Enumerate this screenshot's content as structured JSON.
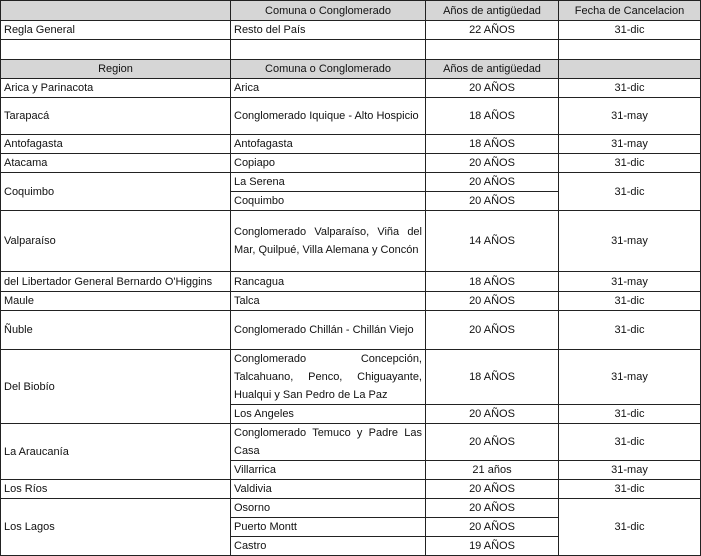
{
  "top": {
    "headers": [
      "Comuna o Conglomerado",
      "Años de antigüedad",
      "Fecha de Cancelacion"
    ],
    "row": [
      "Regla General",
      "Resto del País",
      "22 AÑOS",
      "31-dic"
    ]
  },
  "regions": {
    "headers": [
      "Region",
      "Comuna o Conglomerado",
      "Años de antigüedad"
    ],
    "rows": [
      {
        "region": "Arica y Parinacota",
        "fecha": "31-dic",
        "comunas": [
          {
            "comuna": "Arica",
            "anos": "20 AÑOS"
          }
        ]
      },
      {
        "region": "Tarapacá",
        "fecha": "31-may",
        "comunas": [
          {
            "comuna": "Conglomerado Iquique - Alto Hospicio",
            "anos": "18 AÑOS"
          }
        ]
      },
      {
        "region": "Antofagasta",
        "fecha": "31-may",
        "comunas": [
          {
            "comuna": "Antofagasta",
            "anos": "18 AÑOS"
          }
        ]
      },
      {
        "region": "Atacama",
        "fecha": "31-dic",
        "comunas": [
          {
            "comuna": "Copiapo",
            "anos": "20 AÑOS"
          }
        ]
      },
      {
        "region": "Coquimbo",
        "fecha": "31-dic",
        "comunas": [
          {
            "comuna": "La Serena",
            "anos": "20 AÑOS"
          },
          {
            "comuna": "Coquimbo",
            "anos": "20 AÑOS"
          }
        ]
      },
      {
        "region": "Valparaíso",
        "fecha": "31-may",
        "comunas": [
          {
            "comuna": "Conglomerado Valparaíso, Viña del Mar, Quilpué, Villa Alemana y Concón",
            "anos": "14 AÑOS"
          }
        ]
      },
      {
        "region": "del Libertador General Bernardo O'Higgins",
        "fecha": "31-may",
        "comunas": [
          {
            "comuna": "Rancagua",
            "anos": "18 AÑOS"
          }
        ]
      },
      {
        "region": "Maule",
        "fecha": "31-dic",
        "comunas": [
          {
            "comuna": "Talca",
            "anos": "20 AÑOS"
          }
        ]
      },
      {
        "region": "Ñuble",
        "fecha": "31-dic",
        "comunas": [
          {
            "comuna": "Conglomerado Chillán - Chillán Viejo",
            "anos": "20 AÑOS"
          }
        ]
      },
      {
        "region": "Del Biobío",
        "fecha": "31-may",
        "comunas": [
          {
            "comuna": "Conglomerado Concepción, Talcahuano, Penco, Chiguayante, Hualqui y San Pedro de La Paz",
            "anos": "18 AÑOS"
          }
        ]
      },
      {
        "region": "",
        "fecha": "31-dic",
        "comunas": [
          {
            "comuna": "Los Angeles",
            "anos": "20 AÑOS"
          }
        ]
      },
      {
        "region": "La Araucanía",
        "fecha": "31-dic",
        "comunas": [
          {
            "comuna": "Conglomerado Temuco y Padre Las Casa",
            "anos": "20 AÑOS"
          }
        ]
      },
      {
        "region": "",
        "fecha": "31-may",
        "comunas": [
          {
            "comuna": "Villarrica",
            "anos": "21 años"
          }
        ]
      },
      {
        "region": "Los Ríos",
        "fecha": "31-dic",
        "comunas": [
          {
            "comuna": "Valdivia",
            "anos": "20 AÑOS"
          }
        ]
      },
      {
        "region": "Los Lagos",
        "fecha": "31-dic",
        "comunas": [
          {
            "comuna": "Osorno",
            "anos": "20 AÑOS"
          },
          {
            "comuna": "Puerto Montt",
            "anos": "20 AÑOS"
          },
          {
            "comuna": "Castro",
            "anos": "19 AÑOS"
          }
        ]
      }
    ]
  }
}
